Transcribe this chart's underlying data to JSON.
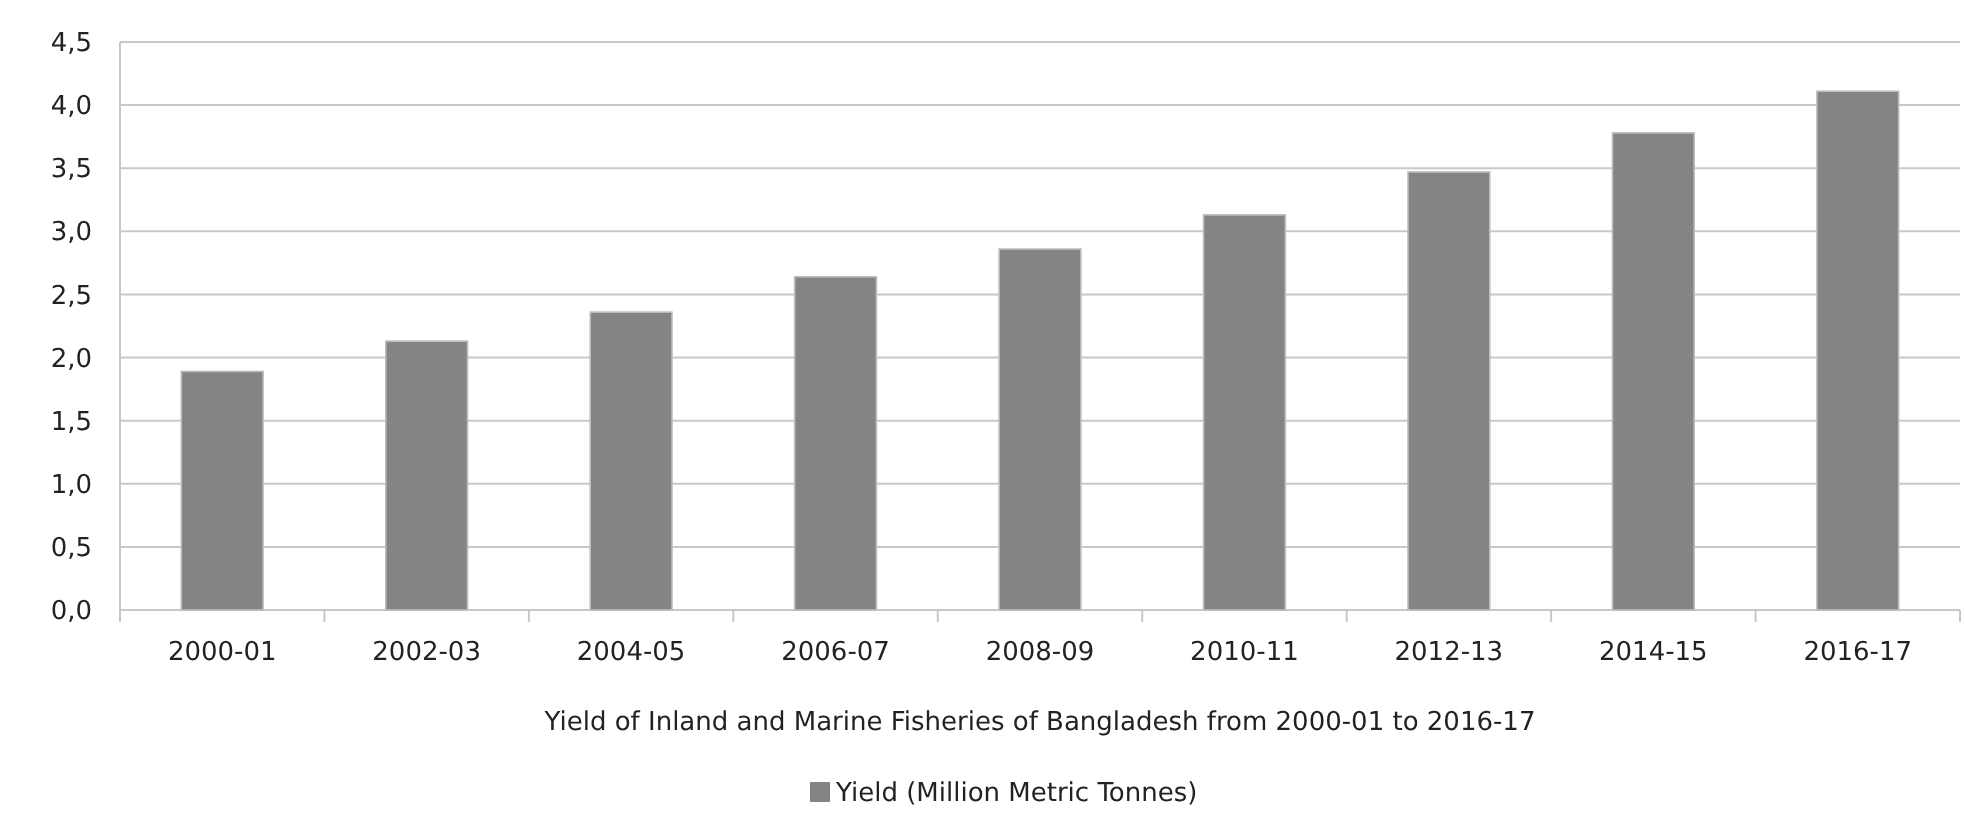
{
  "chart_data": {
    "type": "bar",
    "xlabel": "Yield of Inland and Marine Fisheries of Bangladesh from 2000-01 to 2016-17",
    "categories": [
      "2000-01",
      "2002-03",
      "2004-05",
      "2006-07",
      "2008-09",
      "2010-11",
      "2012-13",
      "2014-15",
      "2016-17"
    ],
    "series": [
      {
        "name": "Yield (Million Metric Tonnes)",
        "color": "#848484",
        "values": [
          1.89,
          2.13,
          2.36,
          2.64,
          2.86,
          3.13,
          3.47,
          3.78,
          4.11
        ]
      }
    ],
    "ylim": [
      0,
      4.5
    ],
    "yticks": [
      {
        "value": 0,
        "label": "0,0"
      },
      {
        "value": 0.5,
        "label": "0,5"
      },
      {
        "value": 1,
        "label": "1,0"
      },
      {
        "value": 1.5,
        "label": "1,5"
      },
      {
        "value": 2,
        "label": "2,0"
      },
      {
        "value": 2.5,
        "label": "2,5"
      },
      {
        "value": 3,
        "label": "3,0"
      },
      {
        "value": 3.5,
        "label": "3,5"
      },
      {
        "value": 4,
        "label": "4,0"
      },
      {
        "value": 4.5,
        "label": "4,5"
      }
    ],
    "grid": "y",
    "legend": "bottom"
  }
}
